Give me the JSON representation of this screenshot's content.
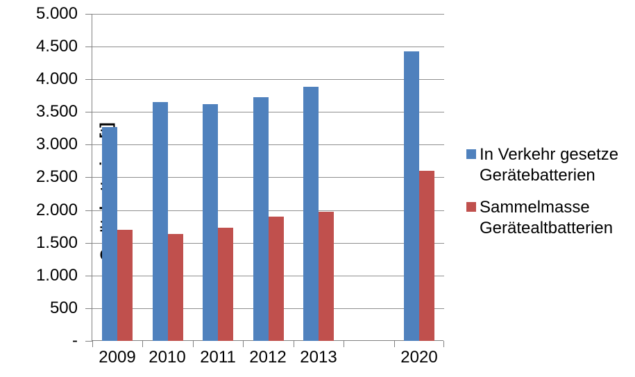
{
  "chart_data": {
    "type": "bar",
    "title": "",
    "ylabel": "Gerätebatterien [t]",
    "xlabel": "",
    "categories": [
      "2009",
      "2010",
      "2011",
      "2012",
      "2013",
      "",
      "2020"
    ],
    "series": [
      {
        "name": "In Verkehr gesetze Gerätebatterien",
        "color": "#4F81BD",
        "values": [
          3270,
          3650,
          3620,
          3730,
          3890,
          null,
          4430
        ]
      },
      {
        "name": "Sammelmasse Gerätealtbatterien",
        "color": "#C0504D",
        "values": [
          1700,
          1640,
          1730,
          1900,
          1970,
          null,
          2600
        ]
      }
    ],
    "ylim": [
      0,
      5000
    ],
    "ytick_step": 500,
    "ytick_labels": [
      "-",
      "500",
      "1.000",
      "1.500",
      "2.000",
      "2.500",
      "3.000",
      "3.500",
      "4.000",
      "4.500",
      "5.000"
    ],
    "grid": true,
    "legend_position": "right",
    "axis_color": "#808080",
    "gridline_color": "#8E8E8E",
    "background_color": "#FFFFFF"
  }
}
